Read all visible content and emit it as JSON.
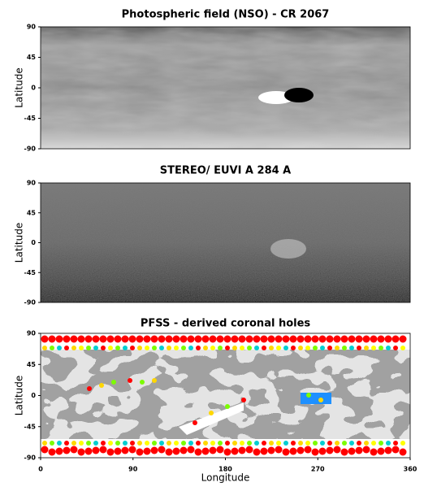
{
  "chart_data": [
    {
      "type": "image",
      "title": "Photospheric field (NSO) - CR 2067",
      "y_label": "Latitude",
      "ylim": [
        -90,
        90
      ],
      "yticks": [
        90,
        45,
        0,
        -45,
        -90
      ]
    },
    {
      "type": "image",
      "title": "STEREO/ EUVI A  284 A",
      "y_label": "Latitude",
      "ylim": [
        -90,
        90
      ],
      "yticks": [
        90,
        45,
        0,
        -45,
        -90
      ]
    },
    {
      "type": "image",
      "title": "PFSS - derived coronal holes",
      "y_label": "Latitude",
      "x_label": "Longitude",
      "ylim": [
        -90,
        90
      ],
      "yticks": [
        90,
        45,
        0,
        -45,
        -90
      ],
      "xlim": [
        0,
        360
      ],
      "xticks": [
        0,
        90,
        180,
        270,
        360
      ]
    }
  ]
}
